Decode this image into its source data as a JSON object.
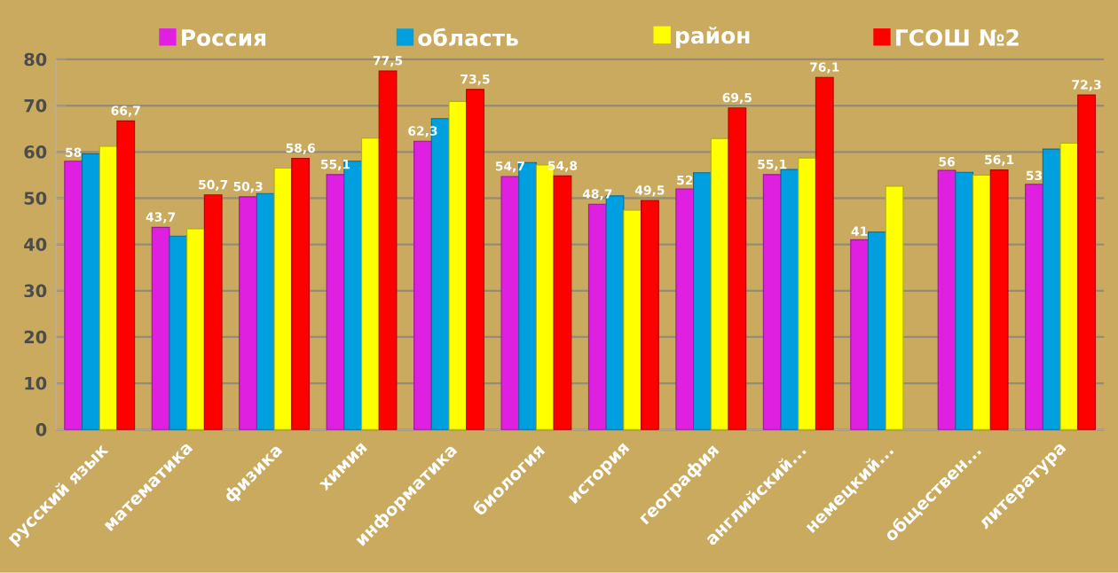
{
  "chart_data": {
    "type": "bar",
    "categories": [
      "русский язык",
      "математика",
      "физика",
      "химия",
      "информатика",
      "биология",
      "история",
      "география",
      "английский...",
      "немецкий...",
      "обществен...",
      "литература"
    ],
    "series": [
      {
        "name": "Россия",
        "color": "#e020e0",
        "values": [
          58,
          43.7,
          50.3,
          55.1,
          62.3,
          54.7,
          48.7,
          52,
          55.1,
          41,
          56,
          53
        ],
        "value_labels": [
          "58",
          "43,7",
          "50,3",
          "55,1",
          "62,3",
          "54,7",
          "48,7",
          "52",
          "55,1",
          "41",
          "56",
          "53"
        ]
      },
      {
        "name": "область",
        "color": "#00a0e0",
        "values": [
          59.6,
          41.8,
          51.0,
          58.0,
          67.2,
          57.7,
          50.5,
          55.5,
          56.2,
          42.7,
          55.6,
          60.6
        ]
      },
      {
        "name": "район",
        "color": "#ffff00",
        "values": [
          61.2,
          43.4,
          56.5,
          63.0,
          70.9,
          57.2,
          47.4,
          62.9,
          58.7,
          52.6,
          55.0,
          61.9
        ]
      },
      {
        "name": "ГСОШ №2",
        "color": "#ff0000",
        "values": [
          66.7,
          50.7,
          58.6,
          77.5,
          73.5,
          54.8,
          49.5,
          69.5,
          76.1,
          null,
          56.1,
          72.3
        ],
        "value_labels": [
          "66,7",
          "50,7",
          "58,6",
          "77,5",
          "73,5",
          "54,8",
          "49,5",
          "69,5",
          "76,1",
          null,
          "56,1",
          "72,3"
        ]
      }
    ],
    "ylim": [
      0,
      80
    ],
    "yticks": [
      0,
      10,
      20,
      30,
      40,
      50,
      60,
      70,
      80
    ],
    "grid": "y",
    "legend": "top"
  }
}
